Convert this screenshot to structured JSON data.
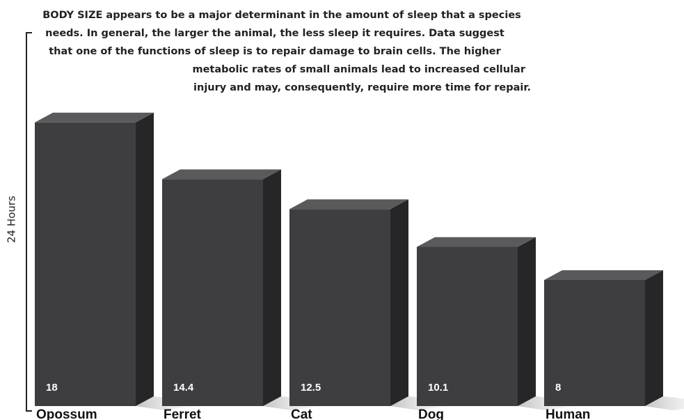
{
  "chart_data": {
    "type": "bar",
    "annotation": [
      "BODY SIZE appears to be a major determinant in the amount of sleep that a species",
      "needs. In general, the larger the animal, the less sleep it requires. Data suggest",
      "that one of the functions of sleep is to repair damage to brain cells. The higher",
      "metabolic rates of small animals lead to increased cellular",
      "injury and may, consequently, require more time for repair."
    ],
    "y_label": "24 Hours",
    "categories": [
      "Opossum",
      "Ferret",
      "Cat",
      "Dog",
      "Human"
    ],
    "values": [
      18,
      14.4,
      12.5,
      10.1,
      8
    ],
    "color": "#3e3e41",
    "ylim": [
      0,
      24
    ]
  }
}
